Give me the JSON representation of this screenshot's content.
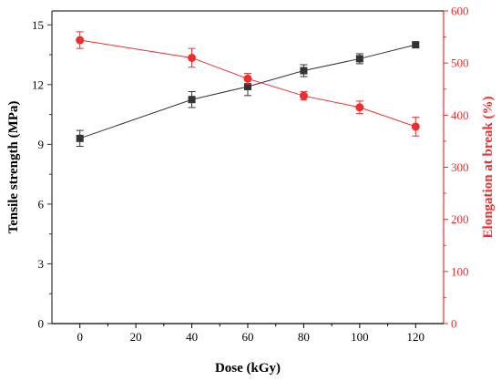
{
  "chart_data": {
    "type": "line",
    "xlabel": "Dose (kGy)",
    "ylabel": "Tensile strength (MPa)",
    "y2label": "Elongation at break (%)",
    "xlim": [
      -10,
      130
    ],
    "ylim": [
      0,
      15.7
    ],
    "y2lim": [
      0,
      600
    ],
    "x_ticks": [
      0,
      20,
      40,
      60,
      80,
      100,
      120
    ],
    "y_ticks": [
      0,
      3,
      6,
      9,
      12,
      15
    ],
    "y2_ticks": [
      0,
      100,
      200,
      300,
      400,
      500,
      600
    ],
    "grid": false,
    "series": [
      {
        "axis": "left",
        "color": "#333333",
        "marker": "square",
        "x": [
          0,
          40,
          60,
          80,
          100,
          120
        ],
        "values": [
          9.3,
          11.25,
          11.9,
          12.7,
          13.3,
          14.0
        ],
        "errors": [
          0.4,
          0.4,
          0.45,
          0.3,
          0.25,
          0.1
        ]
      },
      {
        "axis": "right",
        "color": "#ee2d2d",
        "marker": "circle",
        "x": [
          0,
          40,
          60,
          80,
          100,
          120
        ],
        "values": [
          544,
          510,
          470,
          437,
          415,
          378
        ],
        "errors": [
          16,
          18,
          10,
          8,
          12,
          18
        ]
      }
    ]
  }
}
